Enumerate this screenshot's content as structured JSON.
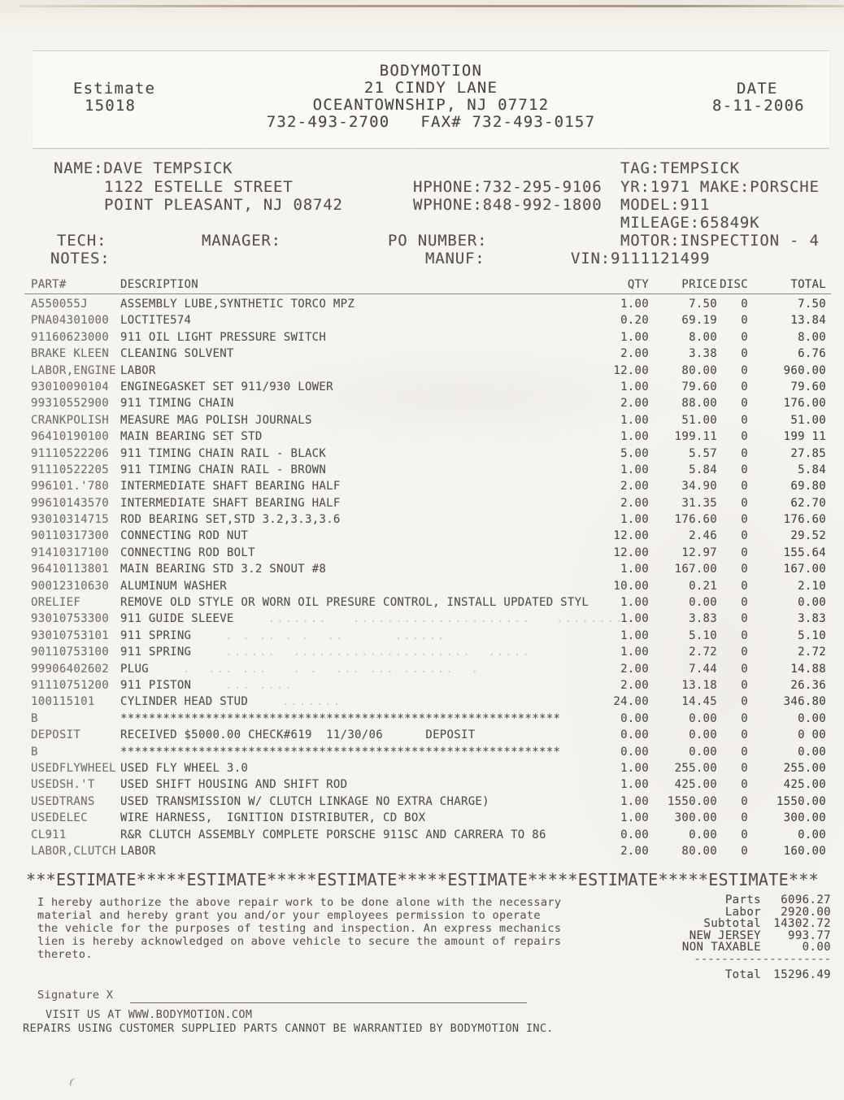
{
  "header": {
    "form_label": "Estimate",
    "estimate_number": "15018",
    "company_name": "BODYMOTION",
    "address_line1": "21 CINDY LANE",
    "address_line2": "OCEANTOWNSHIP, NJ 07712",
    "phone_fax": "732-493-2700   FAX# 732-493-0157",
    "date_label": "DATE",
    "date_value": "8-11-2006"
  },
  "customer": {
    "name": "NAME:DAVE TEMPSICK",
    "street": "1122 ESTELLE STREET",
    "city_state_zip": "POINT PLEASANT, NJ 08742",
    "hphone": "HPHONE:732-295-9106",
    "wphone": "WPHONE:848-992-1800",
    "tag": "TAG:TEMPSICK",
    "year_make": "YR:1971 MAKE:PORSCHE",
    "model": "MODEL:911",
    "mileage": "MILEAGE:65849K",
    "motor": "MOTOR:INSPECTION - 4",
    "tech_label": "TECH:",
    "manager_label": "MANAGER:",
    "po_number_label": "PO NUMBER:",
    "notes_label": "NOTES:",
    "manuf_label": "MANUF:",
    "vin": "VIN:9111121499"
  },
  "table": {
    "headers": [
      "PART#",
      "DESCRIPTION",
      "QTY",
      "PRICE",
      "DISC",
      "TOTAL"
    ],
    "rows": [
      {
        "part": "A550055J",
        "desc": "ASSEMBLY LUBE,SYNTHETIC TORCO MPZ",
        "qty": "1.00",
        "price": "7.50",
        "disc": "0",
        "total": "7.50"
      },
      {
        "part": "PNA04301000",
        "desc": "LOCTITE574",
        "qty": "0.20",
        "price": "69.19",
        "disc": "0",
        "total": "13.84"
      },
      {
        "part": "91160623000",
        "desc": "911 OIL LIGHT PRESSURE SWITCH",
        "qty": "1.00",
        "price": "8.00",
        "disc": "0",
        "total": "8.00"
      },
      {
        "part": "BRAKE KLEEN",
        "desc": "CLEANING SOLVENT",
        "qty": "2.00",
        "price": "3.38",
        "disc": "0",
        "total": "6.76"
      },
      {
        "part": "LABOR,ENGINE",
        "desc": "LABOR",
        "qty": "12.00",
        "price": "80.00",
        "disc": "0",
        "total": "960.00"
      },
      {
        "part": "93010090104",
        "desc": "ENGINEGASKET SET 911/930 LOWER",
        "qty": "1.00",
        "price": "79.60",
        "disc": "0",
        "total": "79.60"
      },
      {
        "part": "99310552900",
        "desc": "911 TIMING CHAIN",
        "qty": "2.00",
        "price": "88.00",
        "disc": "0",
        "total": "176.00"
      },
      {
        "part": "CRANKPOLISH",
        "desc": "MEASURE MAG POLISH JOURNALS",
        "qty": "1.00",
        "price": "51.00",
        "disc": "0",
        "total": "51.00"
      },
      {
        "part": "96410190100",
        "desc": "MAIN BEARING SET STD",
        "qty": "1.00",
        "price": "199.11",
        "disc": "0",
        "total": "199 11"
      },
      {
        "part": "91110522206",
        "desc": "911 TIMING CHAIN RAIL - BLACK",
        "qty": "5.00",
        "price": "5.57",
        "disc": "0",
        "total": "27.85"
      },
      {
        "part": "91110522205",
        "desc": "911 TIMING CHAIN RAIL - BROWN",
        "qty": "1.00",
        "price": "5.84",
        "disc": "0",
        "total": "5.84"
      },
      {
        "part": "996101.'780",
        "desc": "INTERMEDIATE SHAFT BEARING HALF",
        "qty": "2.00",
        "price": "34.90",
        "disc": "0",
        "total": "69.80"
      },
      {
        "part": "99610143570",
        "desc": "INTERMEDIATE SHAFT BEARING HALF",
        "qty": "2.00",
        "price": "31.35",
        "disc": "0",
        "total": "62.70"
      },
      {
        "part": "93010314715",
        "desc": "ROD BEARING SET,STD 3.2,3.3,3.6",
        "qty": "1.00",
        "price": "176.60",
        "disc": "0",
        "total": "176.60"
      },
      {
        "part": "90110317300",
        "desc": "CONNECTING ROD NUT",
        "qty": "12.00",
        "price": "2.46",
        "disc": "0",
        "total": "29.52"
      },
      {
        "part": "91410317100",
        "desc": "CONNECTING ROD BOLT",
        "qty": "12.00",
        "price": "12.97",
        "disc": "0",
        "total": "155.64"
      },
      {
        "part": "96410113801",
        "desc": "MAIN BEARING STD 3.2 SNOUT #8",
        "qty": "1.00",
        "price": "167.00",
        "disc": "0",
        "total": "167.00"
      },
      {
        "part": "90012310630",
        "desc": "ALUMINUM WASHER",
        "qty": "10.00",
        "price": "0.21",
        "disc": "0",
        "total": "2.10"
      },
      {
        "part": "ORELIEF",
        "desc": "REMOVE OLD STYLE OR WORN OIL PRESURE CONTROL, INSTALL UPDATED STYL",
        "qty": "1.00",
        "price": "0.00",
        "disc": "0",
        "total": "0.00"
      },
      {
        "part": "93010753300",
        "desc": "911 GUIDE SLEEVE",
        "qty": "1.00",
        "price": "3.83",
        "disc": "0",
        "total": "3.83",
        "ghost": ".......   .....................   ........"
      },
      {
        "part": "93010753101",
        "desc": "911 SPRING",
        "qty": "1.00",
        "price": "5.10",
        "disc": "0",
        "total": "5.10",
        "ghost": ". . .. . .  ..      ......"
      },
      {
        "part": "90110753100",
        "desc": "911 SPRING",
        "qty": "1.00",
        "price": "2.72",
        "disc": "0",
        "total": "2.72",
        "ghost": "......  .....................  ....."
      },
      {
        "part": "99906402602",
        "desc": "PLUG",
        "qty": "2.00",
        "price": "7.44",
        "disc": "0",
        "total": "14.88",
        "ghost": ".  ... ...   . .  ... ... ......  ."
      },
      {
        "part": "91110751200",
        "desc": "911 PISTON",
        "qty": "2.00",
        "price": "13.18",
        "disc": "0",
        "total": "26.36",
        "ghost": "... ...."
      },
      {
        "part": "100115101",
        "desc": "CYLINDER HEAD STUD",
        "qty": "24.00",
        "price": "14.45",
        "disc": "0",
        "total": "346.80",
        "ghost": "......."
      },
      {
        "part": "B",
        "desc": "**************************************************************",
        "qty": "0.00",
        "price": "0.00",
        "disc": "0",
        "total": "0.00"
      },
      {
        "part": "DEPOSIT",
        "desc": "RECEIVED $5000.00 CHECK#619  11/30/06      DEPOSIT",
        "qty": "0.00",
        "price": "0.00",
        "disc": "0",
        "total": "0 00"
      },
      {
        "part": "B",
        "desc": "**************************************************************",
        "qty": "0.00",
        "price": "0.00",
        "disc": "0",
        "total": "0.00"
      },
      {
        "part": "USEDFLYWHEEL",
        "desc": "USED FLY WHEEL 3.0",
        "qty": "1.00",
        "price": "255.00",
        "disc": "0",
        "total": "255.00"
      },
      {
        "part": "USEDSH.'T",
        "desc": "USED SHIFT HOUSING AND SHIFT ROD",
        "qty": "1.00",
        "price": "425.00",
        "disc": "0",
        "total": "425.00"
      },
      {
        "part": "USEDTRANS",
        "desc": "USED TRANSMISSION W/ CLUTCH LINKAGE NO EXTRA CHARGE)",
        "qty": "1.00",
        "price": "1550.00",
        "disc": "0",
        "total": "1550.00"
      },
      {
        "part": "USEDELEC",
        "desc": "WIRE HARNESS,  IGNITION DISTRIBUTER, CD BOX",
        "qty": "1.00",
        "price": "300.00",
        "disc": "0",
        "total": "300.00"
      },
      {
        "part": "CL911",
        "desc": "R&R CLUTCH ASSEMBLY COMPLETE PORSCHE 911SC AND CARRERA TO 86",
        "qty": "0.00",
        "price": "0.00",
        "disc": "0",
        "total": "0.00"
      },
      {
        "part": "LABOR,CLUTCH",
        "desc": "LABOR",
        "qty": "2.00",
        "price": "80.00",
        "disc": "0",
        "total": "160.00"
      }
    ]
  },
  "banner": {
    "text": "***ESTIMATE*****ESTIMATE*****ESTIMATE*****ESTIMATE*****ESTIMATE*****ESTIMATE***"
  },
  "authorization": {
    "lines": [
      "I hereby authorize the above repair work to be done alone with the necessary",
      "material and hereby grant you and/or your employees permission to operate",
      "the vehicle for the purposes of testing and inspection. An express mechanics",
      "lien is hereby acknowledged on above vehicle to secure the amount of repairs",
      "thereto."
    ]
  },
  "totals": {
    "rows": [
      {
        "label": "Parts",
        "value": "6096.27"
      },
      {
        "label": "Labor",
        "value": "2920.00"
      },
      {
        "label": "Subtotal",
        "value": "14302.72"
      },
      {
        "label": "NEW JERSEY",
        "value": "993.77"
      },
      {
        "label": "NON TAXABLE",
        "value": "0.00"
      }
    ],
    "separator": "--------------------",
    "total": {
      "label": "Total",
      "value": "15296.49"
    }
  },
  "signature": {
    "label": "Signature X"
  },
  "footer": {
    "line1": "VISIT US AT WWW.BODYMOTION.COM",
    "line2": "REPAIRS USING CUSTOMER SUPPLIED PARTS CANNOT BE WARRANTIED BY BODYMOTION INC."
  }
}
